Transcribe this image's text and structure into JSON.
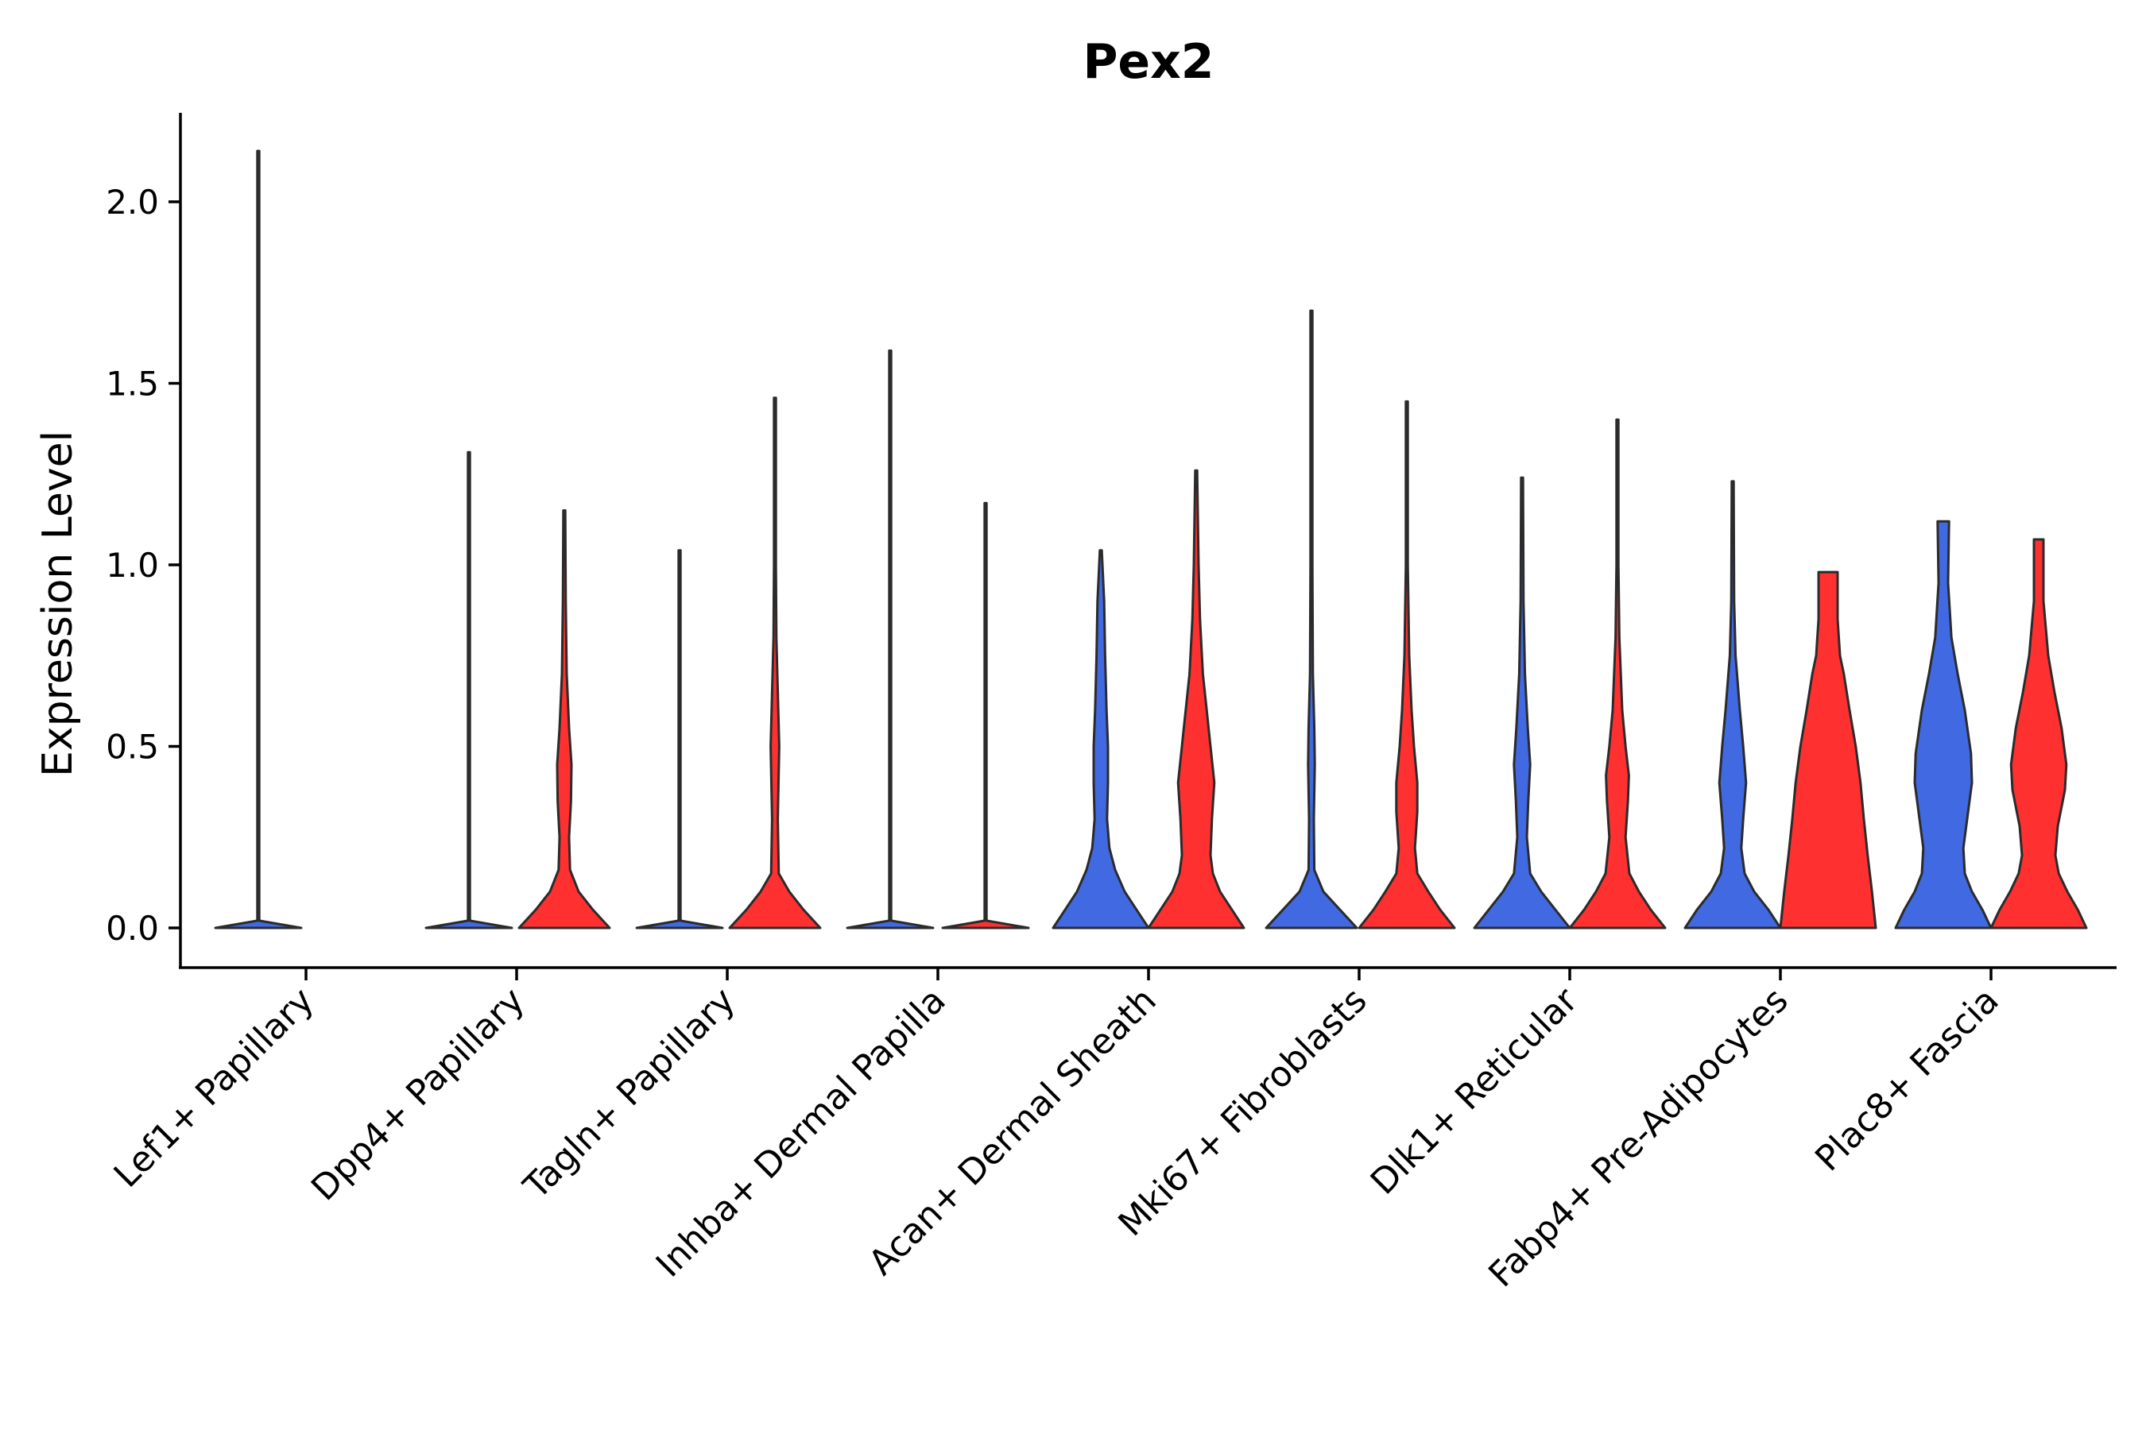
{
  "chart_data": {
    "type": "violin",
    "title": "Pex2",
    "xlabel": "",
    "ylabel": "Expression Level",
    "ylim": [
      -0.11,
      2.25
    ],
    "yticks": [
      0.0,
      0.5,
      1.0,
      1.5,
      2.0
    ],
    "ytick_labels": [
      "0.0",
      "0.5",
      "1.0",
      "1.5",
      "2.0"
    ],
    "categories": [
      "Lef1+ Papillary",
      "Dpp4+ Papillary",
      "Tagln+ Papillary",
      "Inhba+ Dermal Papilla",
      "Acan+ Dermal Sheath",
      "Mki67+ Fibroblasts",
      "Dlk1+ Reticular",
      "Fabp4+ Pre-Adipocytes",
      "Plac8+ Fascia"
    ],
    "series_colors": {
      "blue": "#4169E1",
      "red": "#FF3030"
    },
    "violins": [
      {
        "category": 0,
        "slot": "left",
        "color": "#4169E1",
        "max": 2.14,
        "profile": [
          [
            0,
            0.9
          ],
          [
            0.02,
            0.02
          ],
          [
            0.1,
            0.005
          ],
          [
            2.14,
            0.005
          ]
        ]
      },
      {
        "category": 1,
        "slot": "left",
        "color": "#4169E1",
        "max": 1.31,
        "profile": [
          [
            0,
            0.9
          ],
          [
            0.02,
            0.02
          ],
          [
            0.1,
            0.005
          ],
          [
            1.31,
            0.005
          ]
        ]
      },
      {
        "category": 1,
        "slot": "right",
        "color": "#FF3030",
        "max": 1.15,
        "profile": [
          [
            0,
            0.95
          ],
          [
            0.05,
            0.6
          ],
          [
            0.1,
            0.3
          ],
          [
            0.16,
            0.12
          ],
          [
            0.25,
            0.1
          ],
          [
            0.35,
            0.14
          ],
          [
            0.45,
            0.15
          ],
          [
            0.55,
            0.1
          ],
          [
            0.7,
            0.05
          ],
          [
            0.9,
            0.03
          ],
          [
            1.15,
            0.01
          ]
        ]
      },
      {
        "category": 2,
        "slot": "left",
        "color": "#4169E1",
        "max": 1.04,
        "profile": [
          [
            0,
            0.9
          ],
          [
            0.02,
            0.02
          ],
          [
            0.1,
            0.005
          ],
          [
            1.04,
            0.005
          ]
        ]
      },
      {
        "category": 2,
        "slot": "right",
        "color": "#FF3030",
        "max": 1.46,
        "profile": [
          [
            0,
            0.95
          ],
          [
            0.05,
            0.6
          ],
          [
            0.1,
            0.3
          ],
          [
            0.15,
            0.08
          ],
          [
            0.3,
            0.06
          ],
          [
            0.5,
            0.09
          ],
          [
            0.6,
            0.07
          ],
          [
            0.8,
            0.03
          ],
          [
            1.0,
            0.015
          ],
          [
            1.46,
            0.008
          ]
        ]
      },
      {
        "category": 3,
        "slot": "left",
        "color": "#4169E1",
        "max": 1.59,
        "profile": [
          [
            0,
            0.9
          ],
          [
            0.02,
            0.02
          ],
          [
            0.1,
            0.005
          ],
          [
            1.59,
            0.005
          ]
        ]
      },
      {
        "category": 3,
        "slot": "right",
        "color": "#FF3030",
        "max": 1.17,
        "profile": [
          [
            0,
            0.9
          ],
          [
            0.02,
            0.02
          ],
          [
            0.1,
            0.005
          ],
          [
            1.17,
            0.005
          ]
        ]
      },
      {
        "category": 4,
        "slot": "left",
        "color": "#4169E1",
        "max": 1.04,
        "profile": [
          [
            0,
            1.0
          ],
          [
            0.05,
            0.75
          ],
          [
            0.1,
            0.5
          ],
          [
            0.16,
            0.3
          ],
          [
            0.22,
            0.18
          ],
          [
            0.3,
            0.13
          ],
          [
            0.4,
            0.15
          ],
          [
            0.5,
            0.15
          ],
          [
            0.6,
            0.12
          ],
          [
            0.75,
            0.09
          ],
          [
            0.9,
            0.07
          ],
          [
            1.04,
            0.02
          ]
        ]
      },
      {
        "category": 4,
        "slot": "right",
        "color": "#FF3030",
        "max": 1.26,
        "profile": [
          [
            0,
            1.0
          ],
          [
            0.05,
            0.75
          ],
          [
            0.1,
            0.5
          ],
          [
            0.15,
            0.35
          ],
          [
            0.2,
            0.3
          ],
          [
            0.3,
            0.33
          ],
          [
            0.4,
            0.38
          ],
          [
            0.5,
            0.3
          ],
          [
            0.6,
            0.22
          ],
          [
            0.7,
            0.14
          ],
          [
            0.85,
            0.08
          ],
          [
            1.0,
            0.05
          ],
          [
            1.26,
            0.015
          ]
        ]
      },
      {
        "category": 5,
        "slot": "left",
        "color": "#4169E1",
        "max": 1.7,
        "profile": [
          [
            0,
            0.95
          ],
          [
            0.05,
            0.6
          ],
          [
            0.1,
            0.25
          ],
          [
            0.16,
            0.06
          ],
          [
            0.3,
            0.05
          ],
          [
            0.45,
            0.07
          ],
          [
            0.55,
            0.06
          ],
          [
            0.7,
            0.03
          ],
          [
            1.0,
            0.012
          ],
          [
            1.7,
            0.005
          ]
        ]
      },
      {
        "category": 5,
        "slot": "right",
        "color": "#FF3030",
        "max": 1.45,
        "profile": [
          [
            0,
            1.0
          ],
          [
            0.05,
            0.7
          ],
          [
            0.1,
            0.45
          ],
          [
            0.15,
            0.22
          ],
          [
            0.22,
            0.17
          ],
          [
            0.32,
            0.22
          ],
          [
            0.4,
            0.22
          ],
          [
            0.5,
            0.15
          ],
          [
            0.6,
            0.1
          ],
          [
            0.75,
            0.05
          ],
          [
            1.0,
            0.02
          ],
          [
            1.45,
            0.008
          ]
        ]
      },
      {
        "category": 6,
        "slot": "left",
        "color": "#4169E1",
        "max": 1.24,
        "profile": [
          [
            0,
            1.0
          ],
          [
            0.05,
            0.7
          ],
          [
            0.1,
            0.4
          ],
          [
            0.15,
            0.17
          ],
          [
            0.25,
            0.1
          ],
          [
            0.35,
            0.13
          ],
          [
            0.45,
            0.17
          ],
          [
            0.55,
            0.12
          ],
          [
            0.7,
            0.06
          ],
          [
            0.9,
            0.03
          ],
          [
            1.24,
            0.01
          ]
        ]
      },
      {
        "category": 6,
        "slot": "right",
        "color": "#FF3030",
        "max": 1.4,
        "profile": [
          [
            0,
            1.0
          ],
          [
            0.05,
            0.7
          ],
          [
            0.1,
            0.45
          ],
          [
            0.15,
            0.25
          ],
          [
            0.25,
            0.17
          ],
          [
            0.35,
            0.22
          ],
          [
            0.42,
            0.24
          ],
          [
            0.5,
            0.17
          ],
          [
            0.6,
            0.1
          ],
          [
            0.8,
            0.04
          ],
          [
            1.0,
            0.02
          ],
          [
            1.4,
            0.008
          ]
        ]
      },
      {
        "category": 7,
        "slot": "left",
        "color": "#4169E1",
        "max": 1.23,
        "profile": [
          [
            0,
            1.0
          ],
          [
            0.05,
            0.75
          ],
          [
            0.1,
            0.45
          ],
          [
            0.15,
            0.25
          ],
          [
            0.22,
            0.18
          ],
          [
            0.3,
            0.22
          ],
          [
            0.4,
            0.28
          ],
          [
            0.5,
            0.22
          ],
          [
            0.6,
            0.15
          ],
          [
            0.75,
            0.06
          ],
          [
            0.9,
            0.03
          ],
          [
            1.23,
            0.01
          ]
        ]
      },
      {
        "category": 7,
        "slot": "right",
        "color": "#FF3030",
        "max": 0.98,
        "profile": [
          [
            0,
            1.0
          ],
          [
            0.1,
            0.92
          ],
          [
            0.2,
            0.83
          ],
          [
            0.3,
            0.75
          ],
          [
            0.4,
            0.68
          ],
          [
            0.5,
            0.58
          ],
          [
            0.6,
            0.45
          ],
          [
            0.7,
            0.33
          ],
          [
            0.75,
            0.25
          ],
          [
            0.85,
            0.2
          ],
          [
            0.95,
            0.2
          ],
          [
            0.98,
            0.2
          ]
        ]
      },
      {
        "category": 8,
        "slot": "left",
        "color": "#4169E1",
        "max": 1.12,
        "profile": [
          [
            0,
            1.0
          ],
          [
            0.05,
            0.82
          ],
          [
            0.1,
            0.6
          ],
          [
            0.15,
            0.45
          ],
          [
            0.22,
            0.42
          ],
          [
            0.3,
            0.5
          ],
          [
            0.4,
            0.6
          ],
          [
            0.48,
            0.58
          ],
          [
            0.6,
            0.45
          ],
          [
            0.7,
            0.3
          ],
          [
            0.8,
            0.17
          ],
          [
            0.95,
            0.1
          ],
          [
            1.12,
            0.12
          ]
        ]
      },
      {
        "category": 8,
        "slot": "right",
        "color": "#FF3030",
        "max": 1.07,
        "profile": [
          [
            0,
            1.0
          ],
          [
            0.05,
            0.82
          ],
          [
            0.1,
            0.6
          ],
          [
            0.15,
            0.42
          ],
          [
            0.2,
            0.35
          ],
          [
            0.28,
            0.4
          ],
          [
            0.38,
            0.55
          ],
          [
            0.45,
            0.58
          ],
          [
            0.55,
            0.48
          ],
          [
            0.65,
            0.33
          ],
          [
            0.75,
            0.2
          ],
          [
            0.9,
            0.1
          ],
          [
            1.07,
            0.1
          ]
        ]
      }
    ]
  }
}
